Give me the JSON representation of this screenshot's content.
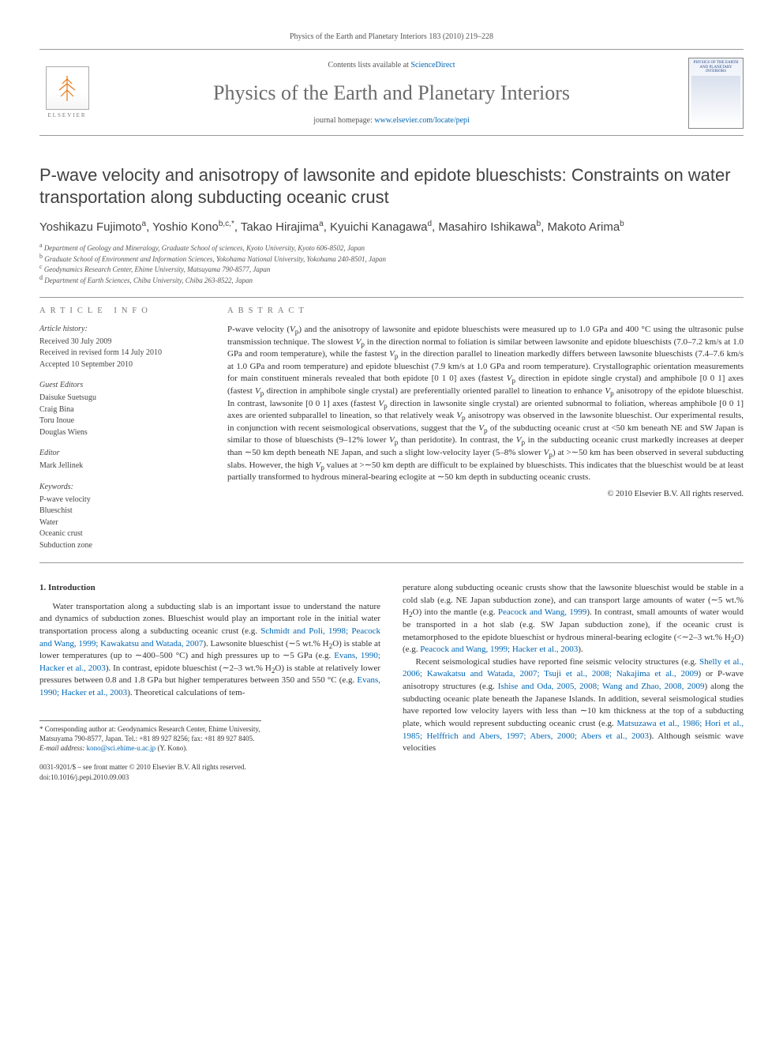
{
  "header": {
    "citation_line": "Physics of the Earth and Planetary Interiors 183 (2010) 219–228",
    "contents_prefix": "Contents lists available at ",
    "contents_link": "ScienceDirect",
    "journal_name": "Physics of the Earth and Planetary Interiors",
    "homepage_prefix": "journal homepage: ",
    "homepage_link": "www.elsevier.com/locate/pepi",
    "publisher_label": "ELSEVIER",
    "cover_label": "PHYSICS OF THE EARTH AND PLANETARY INTERIORS"
  },
  "title": "P-wave velocity and anisotropy of lawsonite and epidote blueschists: Constraints on water transportation along subducting oceanic crust",
  "authors_html": "Yoshikazu Fujimoto<sup>a</sup>, Yoshio Kono<sup>b,c,*</sup>, Takao Hirajima<sup>a</sup>, Kyuichi Kanagawa<sup>d</sup>, Masahiro Ishikawa<sup>b</sup>, Makoto Arima<sup>b</sup>",
  "affiliations": [
    "a Department of Geology and Mineralogy, Graduate School of sciences, Kyoto University, Kyoto 606-8502, Japan",
    "b Graduate School of Environment and Information Sciences, Yokohama National University, Yokohama 240-8501, Japan",
    "c Geodynamics Research Center, Ehime University, Matsuyama 790-8577, Japan",
    "d Department of Earth Sciences, Chiba University, Chiba 263-8522, Japan"
  ],
  "article_info": {
    "heading": "article info",
    "history_label": "Article history:",
    "history": [
      "Received 30 July 2009",
      "Received in revised form 14 July 2010",
      "Accepted 10 September 2010"
    ],
    "guest_label": "Guest Editors",
    "guest": [
      "Daisuke Suetsugu",
      "Craig Bina",
      "Toru Inoue",
      "Douglas Wiens"
    ],
    "editor_label": "Editor",
    "editor": "Mark Jellinek",
    "keywords_label": "Keywords:",
    "keywords": [
      "P-wave velocity",
      "Blueschist",
      "Water",
      "Oceanic crust",
      "Subduction zone"
    ]
  },
  "abstract": {
    "heading": "abstract",
    "text_html": "P-wave velocity (<i>V</i><sub>p</sub>) and the anisotropy of lawsonite and epidote blueschists were measured up to 1.0 GPa and 400 °C using the ultrasonic pulse transmission technique. The slowest <i>V</i><sub>p</sub> in the direction normal to foliation is similar between lawsonite and epidote blueschists (7.0–7.2 km/s at 1.0 GPa and room temperature), while the fastest <i>V</i><sub>p</sub> in the direction parallel to lineation markedly differs between lawsonite blueschists (7.4–7.6 km/s at 1.0 GPa and room temperature) and epidote blueschist (7.9 km/s at 1.0 GPa and room temperature). Crystallographic orientation measurements for main constituent minerals revealed that both epidote [0 1 0] axes (fastest <i>V</i><sub>p</sub> direction in epidote single crystal) and amphibole [0 0 1] axes (fastest <i>V</i><sub>p</sub> direction in amphibole single crystal) are preferentially oriented parallel to lineation to enhance <i>V</i><sub>p</sub> anisotropy of the epidote blueschist. In contrast, lawsonite [0 0 1] axes (fastest <i>V</i><sub>p</sub> direction in lawsonite single crystal) are oriented subnormal to foliation, whereas amphibole [0 0 1] axes are oriented subparallel to lineation, so that relatively weak <i>V</i><sub>p</sub> anisotropy was observed in the lawsonite blueschist. Our experimental results, in conjunction with recent seismological observations, suggest that the <i>V</i><sub>p</sub> of the subducting oceanic crust at &lt;50 km beneath NE and SW Japan is similar to those of blueschists (9–12% lower <i>V</i><sub>p</sub> than peridotite). In contrast, the <i>V</i><sub>p</sub> in the subducting oceanic crust markedly increases at deeper than ∼50 km depth beneath NE Japan, and such a slight low-velocity layer (5–8% slower <i>V</i><sub>p</sub>) at &gt;∼50 km has been observed in several subducting slabs. However, the high <i>V</i><sub>p</sub> values at &gt;∼50 km depth are difficult to be explained by blueschists. This indicates that the blueschist would be at least partially transformed to hydrous mineral-bearing eclogite at ∼50 km depth in subducting oceanic crusts.",
    "copyright": "© 2010 Elsevier B.V. All rights reserved."
  },
  "body": {
    "section_heading": "1. Introduction",
    "col1_html": "Water transportation along a subducting slab is an important issue to understand the nature and dynamics of subduction zones. Blueschist would play an important role in the initial water transportation process along a subducting oceanic crust (e.g. <a href='#'>Schmidt and Poli, 1998; Peacock and Wang, 1999; Kawakatsu and Watada, 2007</a>). Lawsonite blueschist (∼5 wt.% H<sub>2</sub>O) is stable at lower temperatures (up to ∼400–500 °C) and high pressures up to ∼5 GPa (e.g. <a href='#'>Evans, 1990; Hacker et al., 2003</a>). In contrast, epidote blueschist (∼2–3 wt.% H<sub>2</sub>O) is stable at relatively lower pressures between 0.8 and 1.8 GPa but higher temperatures between 350 and 550 °C (e.g. <a href='#'>Evans, 1990; Hacker et al., 2003</a>). Theoretical calculations of tem-",
    "col2_html": "perature along subducting oceanic crusts show that the lawsonite blueschist would be stable in a cold slab (e.g. NE Japan subduction zone), and can transport large amounts of water (∼5 wt.% H<sub>2</sub>O) into the mantle (e.g. <a href='#'>Peacock and Wang, 1999</a>). In contrast, small amounts of water would be transported in a hot slab (e.g. SW Japan subduction zone), if the oceanic crust is metamorphosed to the epidote blueschist or hydrous mineral-bearing eclogite (&lt;∼2–3 wt.% H<sub>2</sub>O) (e.g. <a href='#'>Peacock and Wang, 1999; Hacker et al., 2003</a>).",
    "col2b_html": "Recent seismological studies have reported fine seismic velocity structures (e.g. <a href='#'>Shelly et al., 2006; Kawakatsu and Watada, 2007; Tsuji et al., 2008; Nakajima et al., 2009</a>) or P-wave anisotropy structures (e.g. <a href='#'>Ishise and Oda, 2005, 2008; Wang and Zhao, 2008, 2009</a>) along the subducting oceanic plate beneath the Japanese Islands. In addition, several seismological studies have reported low velocity layers with less than ∼10 km thickness at the top of a subducting plate, which would represent subducting oceanic crust (e.g. <a href='#'>Matsuzawa et al., 1986; Hori et al., 1985; Helffrich and Abers, 1997; Abers, 2000; Abers et al., 2003</a>). Although seismic wave velocities"
  },
  "footnote": {
    "corr_html": "* Corresponding author at: Geodynamics Research Center, Ehime University, Matsuyama 790-8577, Japan. Tel.: +81 89 927 8256; fax: +81 89 927 8405.",
    "email_label": "E-mail address:",
    "email": "kono@sci.ehime-u.ac.jp",
    "email_suffix": " (Y. Kono)."
  },
  "footer": {
    "line1": "0031-9201/$ – see front matter © 2010 Elsevier B.V. All rights reserved.",
    "line2": "doi:10.1016/j.pepi.2010.09.003"
  }
}
